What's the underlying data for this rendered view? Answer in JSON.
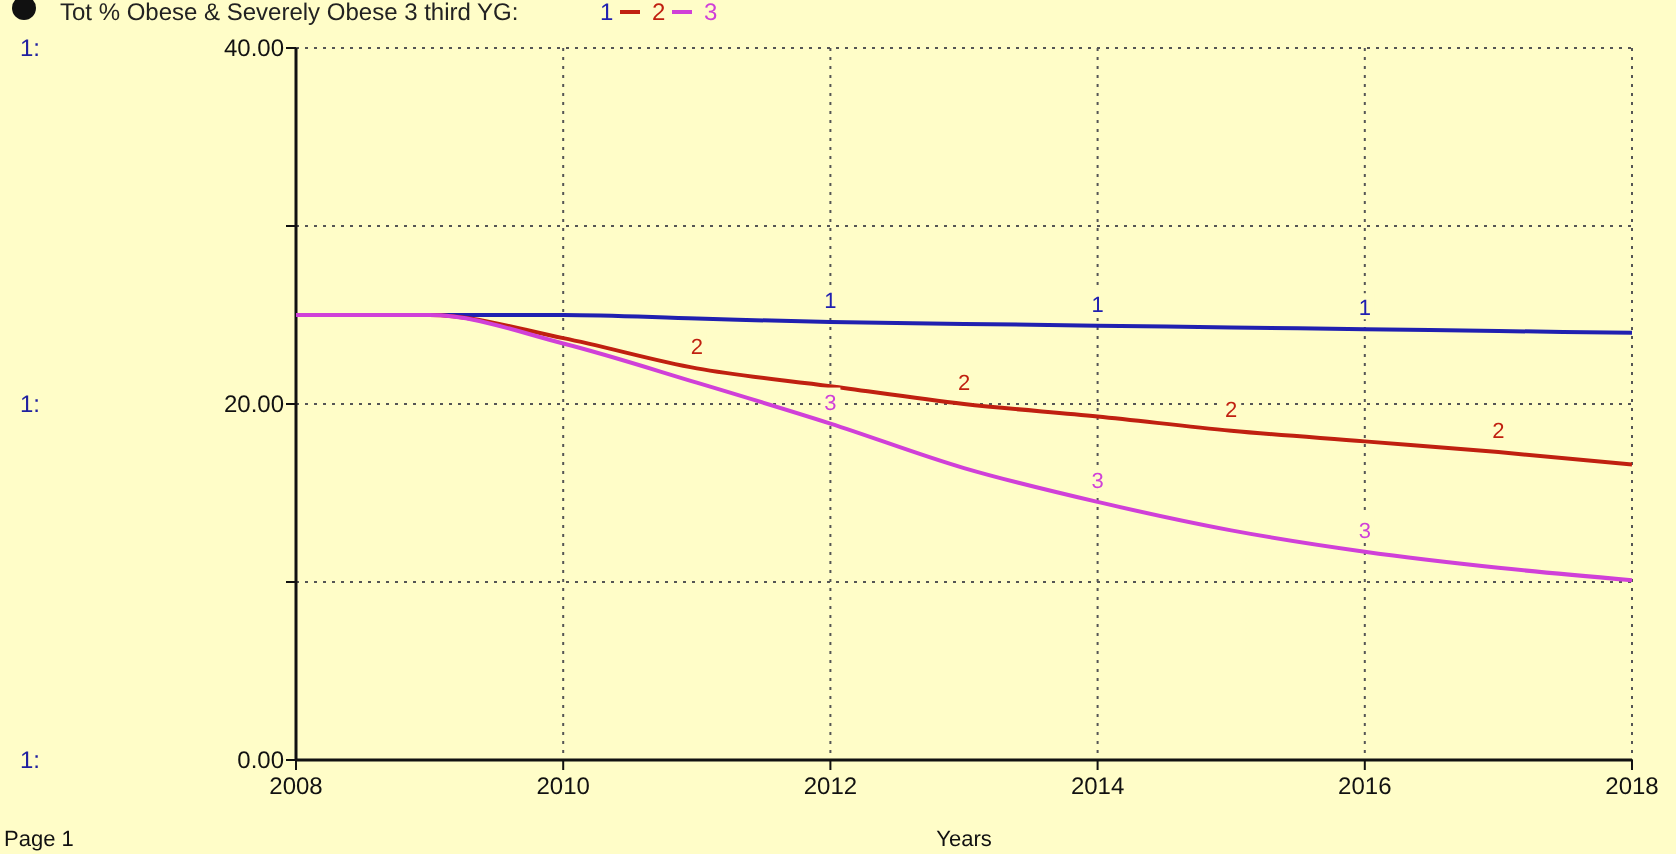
{
  "chart_data": {
    "type": "line",
    "title": "Tot % Obese & Severely Obese 3 third YG:",
    "xlabel": "Years",
    "annotations": [
      "Page 1",
      "1:",
      "1:",
      "1:"
    ],
    "x": [
      2008,
      2009,
      2010,
      2011,
      2012,
      2013,
      2014,
      2015,
      2016,
      2017,
      2018
    ],
    "xlim": [
      2008,
      2018
    ],
    "xticks": [
      2008,
      2010,
      2012,
      2014,
      2016,
      2018
    ],
    "ylim": [
      0,
      40
    ],
    "yticks": [
      {
        "value": 0,
        "label": "0.00"
      },
      {
        "value": 10,
        "label": null
      },
      {
        "value": 20,
        "label": "20.00"
      },
      {
        "value": 30,
        "label": null
      },
      {
        "value": 40,
        "label": "40.00"
      }
    ],
    "grid": true,
    "legend": "top left",
    "series": [
      {
        "name": "1",
        "color": "#2020b0",
        "values": [
          25.0,
          25.0,
          25.0,
          24.8,
          24.6,
          24.5,
          24.4,
          24.3,
          24.2,
          24.1,
          24.0
        ]
      },
      {
        "name": "2",
        "color": "#c02010",
        "values": [
          25.0,
          25.0,
          23.7,
          22.0,
          21.0,
          20.0,
          19.3,
          18.5,
          17.9,
          17.3,
          16.6
        ]
      },
      {
        "name": "3",
        "color": "#d040d8",
        "values": [
          25.0,
          25.0,
          23.4,
          21.2,
          18.9,
          16.4,
          14.5,
          12.9,
          11.7,
          10.8,
          10.1
        ]
      }
    ]
  }
}
